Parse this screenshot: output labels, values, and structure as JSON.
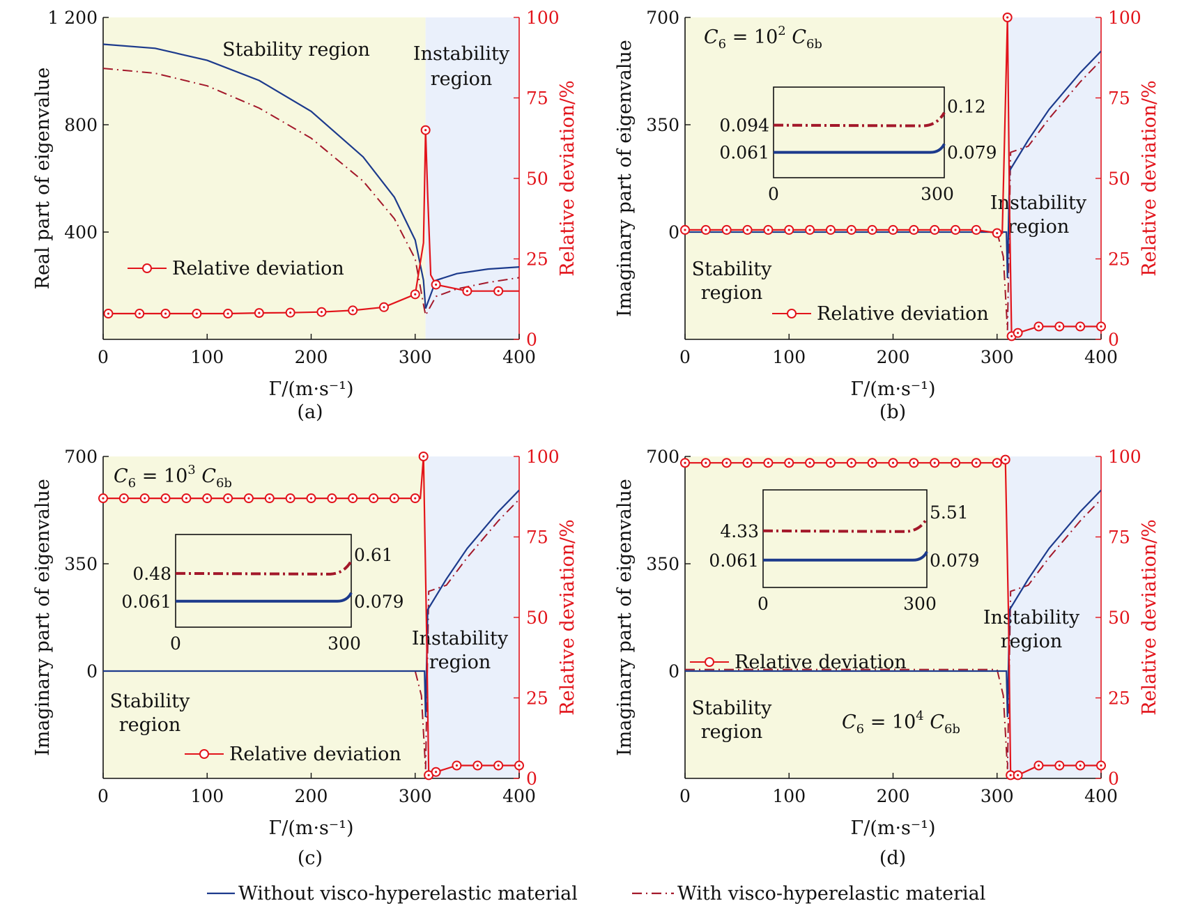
{
  "colors": {
    "without": "#1c3a8c",
    "with": "#a3182a",
    "deviation": "#e2141b",
    "stability_bg": "#f7f8df",
    "instability_bg": "#eaf0fb",
    "axis": "#111111"
  },
  "legend": {
    "without": "Without visco-hyperelastic material",
    "with": "With visco-hyperelastic material"
  },
  "chart_data": [
    {
      "panel": "(a)",
      "type": "line",
      "xlabel": "Γ/(m·s⁻¹)",
      "ylabel": "Real part of eigenvalue",
      "y2label": "Relative deviation/%",
      "xlim": [
        0,
        400
      ],
      "ylim": [
        0,
        1200
      ],
      "y2lim": [
        0,
        100
      ],
      "xticks": [
        "0",
        "100",
        "200",
        "300",
        "400"
      ],
      "yticks": [
        {
          "v": 400,
          "t": "400"
        },
        {
          "v": 800,
          "t": "800"
        },
        {
          "v": 1200,
          "t": "1 200"
        }
      ],
      "y2ticks": [
        "0",
        "25",
        "50",
        "75",
        "100"
      ],
      "stability_label": "Stability region",
      "instability_label": "Instability region",
      "deviation_label": "Relative deviation",
      "formula": null,
      "critical_x": 310,
      "without": [
        [
          0,
          1100
        ],
        [
          50,
          1085
        ],
        [
          100,
          1040
        ],
        [
          150,
          965
        ],
        [
          200,
          850
        ],
        [
          250,
          680
        ],
        [
          280,
          530
        ],
        [
          300,
          370
        ],
        [
          308,
          220
        ],
        [
          310,
          115
        ],
        [
          320,
          220
        ],
        [
          340,
          245
        ],
        [
          370,
          262
        ],
        [
          400,
          270
        ]
      ],
      "with": [
        [
          0,
          1010
        ],
        [
          50,
          992
        ],
        [
          100,
          945
        ],
        [
          150,
          862
        ],
        [
          200,
          750
        ],
        [
          250,
          590
        ],
        [
          280,
          450
        ],
        [
          300,
          300
        ],
        [
          308,
          130
        ],
        [
          310,
          90
        ],
        [
          320,
          160
        ],
        [
          340,
          188
        ],
        [
          370,
          212
        ],
        [
          400,
          230
        ]
      ],
      "deviation": [
        [
          5,
          8
        ],
        [
          35,
          8
        ],
        [
          60,
          8
        ],
        [
          90,
          8
        ],
        [
          120,
          8
        ],
        [
          150,
          8.2
        ],
        [
          180,
          8.3
        ],
        [
          210,
          8.5
        ],
        [
          240,
          9
        ],
        [
          270,
          10
        ],
        [
          300,
          14
        ],
        [
          308,
          30
        ],
        [
          310,
          65
        ],
        [
          312,
          45
        ],
        [
          315,
          20
        ],
        [
          320,
          17
        ],
        [
          350,
          15
        ],
        [
          380,
          15
        ],
        [
          400,
          15
        ]
      ],
      "deviation_markers": [
        [
          5,
          8
        ],
        [
          35,
          8
        ],
        [
          60,
          8
        ],
        [
          90,
          8
        ],
        [
          120,
          8
        ],
        [
          150,
          8.2
        ],
        [
          180,
          8.3
        ],
        [
          210,
          8.5
        ],
        [
          240,
          9
        ],
        [
          270,
          10
        ],
        [
          300,
          14
        ],
        [
          310,
          65
        ],
        [
          320,
          17
        ],
        [
          350,
          15
        ],
        [
          380,
          15
        ]
      ],
      "inset": null
    },
    {
      "panel": "(b)",
      "type": "line",
      "xlabel": "Γ/(m·s⁻¹)",
      "ylabel": "Imaginary part of eigenvalue",
      "y2label": "Relative deviation/%",
      "xlim": [
        0,
        400
      ],
      "ylim": [
        -350,
        700
      ],
      "y2lim": [
        0,
        100
      ],
      "xticks": [
        "0",
        "100",
        "200",
        "300",
        "400"
      ],
      "yticks": [
        {
          "v": 0,
          "t": "0"
        },
        {
          "v": 350,
          "t": "350"
        },
        {
          "v": 700,
          "t": "700"
        }
      ],
      "y2ticks": [
        "0",
        "25",
        "50",
        "75",
        "100"
      ],
      "stability_label": "Stability region",
      "instability_label": "Instability region",
      "deviation_label": "Relative deviation",
      "formula": {
        "base": "C",
        "sub": "6",
        "eq": " = 10",
        "sup": "2",
        "rhs": " C",
        "rhs_sub": "6b"
      },
      "critical_x": 310,
      "without": [
        [
          0,
          0
        ],
        [
          305,
          0
        ],
        [
          309,
          0
        ],
        [
          310,
          -150
        ],
        [
          312,
          200
        ],
        [
          330,
          300
        ],
        [
          350,
          400
        ],
        [
          380,
          520
        ],
        [
          400,
          590
        ]
      ],
      "with": [
        [
          0,
          0
        ],
        [
          300,
          0
        ],
        [
          306,
          -80
        ],
        [
          310,
          -320
        ],
        [
          313,
          260
        ],
        [
          330,
          280
        ],
        [
          350,
          370
        ],
        [
          380,
          490
        ],
        [
          400,
          560
        ]
      ],
      "deviation": [
        [
          0,
          34
        ],
        [
          20,
          34
        ],
        [
          40,
          34
        ],
        [
          60,
          34
        ],
        [
          80,
          34
        ],
        [
          100,
          34
        ],
        [
          120,
          34
        ],
        [
          140,
          34
        ],
        [
          160,
          34
        ],
        [
          180,
          34
        ],
        [
          200,
          34
        ],
        [
          220,
          34
        ],
        [
          240,
          34
        ],
        [
          260,
          34
        ],
        [
          280,
          34
        ],
        [
          300,
          33
        ],
        [
          305,
          33
        ],
        [
          310,
          100
        ],
        [
          312,
          40
        ],
        [
          314,
          1
        ],
        [
          320,
          2
        ],
        [
          340,
          4
        ],
        [
          360,
          4
        ],
        [
          380,
          4
        ],
        [
          400,
          4
        ]
      ],
      "deviation_markers": [
        [
          0,
          34
        ],
        [
          20,
          34
        ],
        [
          40,
          34
        ],
        [
          60,
          34
        ],
        [
          80,
          34
        ],
        [
          100,
          34
        ],
        [
          120,
          34
        ],
        [
          140,
          34
        ],
        [
          160,
          34
        ],
        [
          180,
          34
        ],
        [
          200,
          34
        ],
        [
          220,
          34
        ],
        [
          240,
          34
        ],
        [
          260,
          34
        ],
        [
          280,
          34
        ],
        [
          300,
          33
        ],
        [
          310,
          100
        ],
        [
          314,
          1
        ],
        [
          320,
          2
        ],
        [
          340,
          4
        ],
        [
          360,
          4
        ],
        [
          380,
          4
        ],
        [
          400,
          4
        ]
      ],
      "inset": {
        "x_ticks": [
          "0",
          "300"
        ],
        "left_values": [
          "0.094",
          "0.061"
        ],
        "right_values": [
          "0.12",
          "0.079"
        ]
      }
    },
    {
      "panel": "(c)",
      "type": "line",
      "xlabel": "Γ/(m·s⁻¹)",
      "ylabel": "Imaginary part of eigenvalue",
      "y2label": "Relative deviation/%",
      "xlim": [
        0,
        400
      ],
      "ylim": [
        -350,
        700
      ],
      "y2lim": [
        0,
        100
      ],
      "xticks": [
        "0",
        "100",
        "200",
        "300",
        "400"
      ],
      "yticks": [
        {
          "v": 0,
          "t": "0"
        },
        {
          "v": 350,
          "t": "350"
        },
        {
          "v": 700,
          "t": "700"
        }
      ],
      "y2ticks": [
        "0",
        "25",
        "50",
        "75",
        "100"
      ],
      "stability_label": "Stability region",
      "instability_label": "Instability region",
      "deviation_label": "Relative deviation",
      "formula": {
        "base": "C",
        "sub": "6",
        "eq": " = 10",
        "sup": "3",
        "rhs": " C",
        "rhs_sub": "6b"
      },
      "critical_x": 310,
      "without": [
        [
          0,
          0
        ],
        [
          305,
          0
        ],
        [
          309,
          0
        ],
        [
          310,
          -150
        ],
        [
          312,
          200
        ],
        [
          330,
          300
        ],
        [
          350,
          400
        ],
        [
          380,
          520
        ],
        [
          400,
          590
        ]
      ],
      "with": [
        [
          0,
          0
        ],
        [
          300,
          0
        ],
        [
          306,
          -80
        ],
        [
          310,
          -320
        ],
        [
          313,
          260
        ],
        [
          330,
          280
        ],
        [
          350,
          370
        ],
        [
          380,
          490
        ],
        [
          400,
          560
        ]
      ],
      "deviation": [
        [
          0,
          87
        ],
        [
          20,
          87
        ],
        [
          40,
          87
        ],
        [
          60,
          87
        ],
        [
          80,
          87
        ],
        [
          100,
          87
        ],
        [
          120,
          87
        ],
        [
          140,
          87
        ],
        [
          160,
          87
        ],
        [
          180,
          87
        ],
        [
          200,
          87
        ],
        [
          220,
          87
        ],
        [
          240,
          87
        ],
        [
          260,
          87
        ],
        [
          280,
          87
        ],
        [
          300,
          87
        ],
        [
          305,
          87
        ],
        [
          308,
          100
        ],
        [
          311,
          45
        ],
        [
          313,
          1
        ],
        [
          320,
          2
        ],
        [
          340,
          4
        ],
        [
          360,
          4
        ],
        [
          380,
          4
        ],
        [
          400,
          4
        ]
      ],
      "deviation_markers": [
        [
          0,
          87
        ],
        [
          20,
          87
        ],
        [
          40,
          87
        ],
        [
          60,
          87
        ],
        [
          80,
          87
        ],
        [
          100,
          87
        ],
        [
          120,
          87
        ],
        [
          140,
          87
        ],
        [
          160,
          87
        ],
        [
          180,
          87
        ],
        [
          200,
          87
        ],
        [
          220,
          87
        ],
        [
          240,
          87
        ],
        [
          260,
          87
        ],
        [
          280,
          87
        ],
        [
          300,
          87
        ],
        [
          308,
          100
        ],
        [
          313,
          1
        ],
        [
          320,
          2
        ],
        [
          340,
          4
        ],
        [
          360,
          4
        ],
        [
          380,
          4
        ],
        [
          400,
          4
        ]
      ],
      "inset": {
        "x_ticks": [
          "0",
          "300"
        ],
        "left_values": [
          "0.48",
          "0.061"
        ],
        "right_values": [
          "0.61",
          "0.079"
        ]
      }
    },
    {
      "panel": "(d)",
      "type": "line",
      "xlabel": "Γ/(m·s⁻¹)",
      "ylabel": "Imaginary part of eigenvalue",
      "y2label": "Relative deviation/%",
      "xlim": [
        0,
        400
      ],
      "ylim": [
        -350,
        700
      ],
      "y2lim": [
        0,
        100
      ],
      "xticks": [
        "0",
        "100",
        "200",
        "300",
        "400"
      ],
      "yticks": [
        {
          "v": 0,
          "t": "0"
        },
        {
          "v": 350,
          "t": "350"
        },
        {
          "v": 700,
          "t": "700"
        }
      ],
      "y2ticks": [
        "0",
        "25",
        "50",
        "75",
        "100"
      ],
      "stability_label": "Stability region",
      "instability_label": "Instability region",
      "deviation_label": "Relative deviation",
      "formula": {
        "base": "C",
        "sub": "6",
        "eq": " = 10",
        "sup": "4",
        "rhs": " C",
        "rhs_sub": "6b"
      },
      "critical_x": 310,
      "without": [
        [
          0,
          0
        ],
        [
          305,
          0
        ],
        [
          309,
          0
        ],
        [
          310,
          -150
        ],
        [
          312,
          200
        ],
        [
          330,
          300
        ],
        [
          350,
          400
        ],
        [
          380,
          520
        ],
        [
          400,
          590
        ]
      ],
      "with": [
        [
          0,
          5
        ],
        [
          300,
          5
        ],
        [
          306,
          -80
        ],
        [
          310,
          -320
        ],
        [
          313,
          260
        ],
        [
          330,
          280
        ],
        [
          350,
          370
        ],
        [
          380,
          490
        ],
        [
          400,
          560
        ]
      ],
      "deviation": [
        [
          0,
          98
        ],
        [
          20,
          98
        ],
        [
          40,
          98
        ],
        [
          60,
          98
        ],
        [
          80,
          98
        ],
        [
          100,
          98
        ],
        [
          120,
          98
        ],
        [
          140,
          98
        ],
        [
          160,
          98
        ],
        [
          180,
          98
        ],
        [
          200,
          98
        ],
        [
          220,
          98
        ],
        [
          240,
          98
        ],
        [
          260,
          98
        ],
        [
          280,
          98
        ],
        [
          300,
          98
        ],
        [
          308,
          99
        ],
        [
          311,
          50
        ],
        [
          313,
          1
        ],
        [
          320,
          1
        ],
        [
          340,
          4
        ],
        [
          360,
          4
        ],
        [
          380,
          4
        ],
        [
          400,
          4
        ]
      ],
      "deviation_markers": [
        [
          0,
          98
        ],
        [
          20,
          98
        ],
        [
          40,
          98
        ],
        [
          60,
          98
        ],
        [
          80,
          98
        ],
        [
          100,
          98
        ],
        [
          120,
          98
        ],
        [
          140,
          98
        ],
        [
          160,
          98
        ],
        [
          180,
          98
        ],
        [
          200,
          98
        ],
        [
          220,
          98
        ],
        [
          240,
          98
        ],
        [
          260,
          98
        ],
        [
          280,
          98
        ],
        [
          300,
          98
        ],
        [
          308,
          99
        ],
        [
          313,
          1
        ],
        [
          320,
          1
        ],
        [
          340,
          4
        ],
        [
          360,
          4
        ],
        [
          380,
          4
        ],
        [
          400,
          4
        ]
      ],
      "inset": {
        "x_ticks": [
          "0",
          "300"
        ],
        "left_values": [
          "4.33",
          "0.061"
        ],
        "right_values": [
          "5.51",
          "0.079"
        ]
      }
    }
  ]
}
